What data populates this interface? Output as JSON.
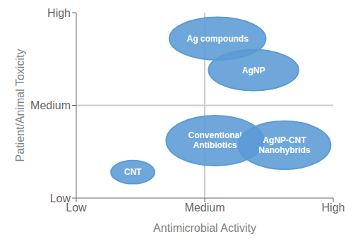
{
  "chart_data": {
    "type": "ellipse",
    "xlabel": "Antimicrobial Activity",
    "ylabel": "Patient/Animal Toxicity",
    "xlim": [
      0,
      2
    ],
    "ylim": [
      0,
      2
    ],
    "xticks": [
      {
        "value": 0,
        "label": "Low"
      },
      {
        "value": 1,
        "label": "Medium"
      },
      {
        "value": 2,
        "label": "High"
      }
    ],
    "yticks": [
      {
        "value": 0,
        "label": "Low"
      },
      {
        "value": 1,
        "label": "Medium"
      },
      {
        "value": 2,
        "label": "High"
      }
    ],
    "vline": 1.0,
    "hline": 1.0,
    "color": "#5b9bd5",
    "grid": false,
    "ellipses": [
      {
        "label": "Ag compounds",
        "x": 1.1,
        "y": 1.72,
        "width": 0.75,
        "height": 0.46
      },
      {
        "label": "AgNP",
        "x": 1.38,
        "y": 1.38,
        "width": 0.7,
        "height": 0.44
      },
      {
        "label": "Conventional\nAntibiotics",
        "x": 1.08,
        "y": 0.62,
        "width": 0.76,
        "height": 0.54
      },
      {
        "label": "AgNP-CNT\nNanohybrids",
        "x": 1.62,
        "y": 0.57,
        "width": 0.72,
        "height": 0.52
      },
      {
        "label": "CNT",
        "x": 0.44,
        "y": 0.28,
        "width": 0.34,
        "height": 0.25
      }
    ]
  }
}
